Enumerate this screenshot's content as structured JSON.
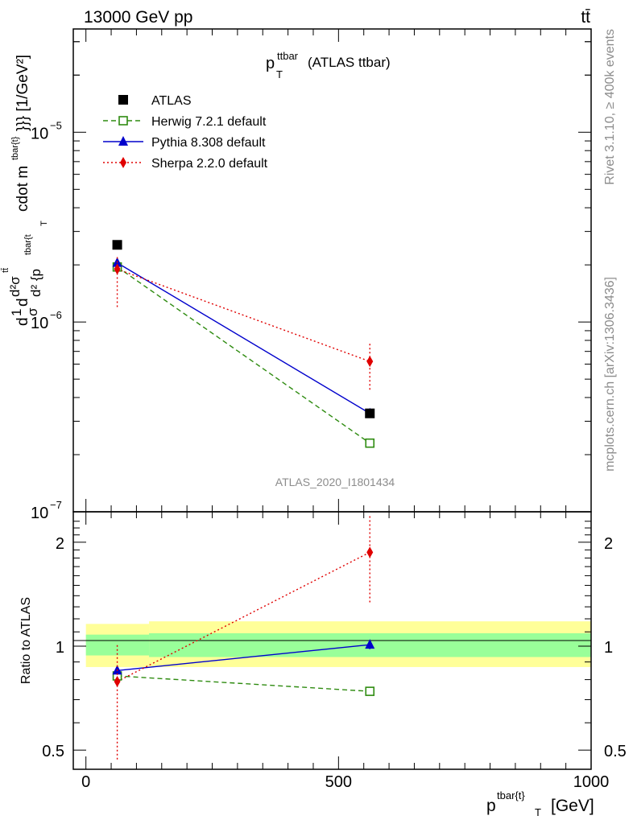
{
  "header": {
    "left": "13000 GeV pp",
    "right": "tt̄"
  },
  "side_labels": {
    "rivet": "Rivet 3.1.10, ≥ 400k events",
    "mcplots": "mcplots.cern.ch [arXiv:1306.3436]"
  },
  "chart_data": [
    {
      "type": "scatter",
      "panel": "main",
      "title_main": "p",
      "title_sub": "T",
      "title_sup": "ttbar",
      "title_rest": "(ATLAS ttbar)",
      "watermark": "ATLAS_2020_I1801434",
      "yscale": "log",
      "ylim": [
        1e-07,
        3.5e-05
      ],
      "xlim": [
        -25,
        1000
      ],
      "ylabel_parts": {
        "d1": "d",
        "one": "1",
        "sigma": "σ",
        "d2": "d",
        "d2sigma_top": "d²σ",
        "sigma_sup": "tt̄",
        "denominator": "d² {p",
        "denom_sup": "tbar{t",
        "denom_sub": "T",
        "rest": "cdot m",
        "rest_sup": "tbar{t}",
        "units": "}}} [1/GeV²]"
      },
      "yticks": [
        {
          "value": 1e-05,
          "label": "10",
          "exp": "−5"
        },
        {
          "value": 1e-06,
          "label": "10",
          "exp": "−6"
        },
        {
          "value": 1e-07,
          "label": "10",
          "exp": "−7"
        }
      ],
      "legend": [
        {
          "name": "ATLAS",
          "color": "#000000",
          "marker": "square",
          "line": "none"
        },
        {
          "name": "Herwig 7.2.1 default",
          "color": "#2e8b10",
          "marker": "open-square",
          "line": "dashed"
        },
        {
          "name": "Pythia 8.308 default",
          "color": "#0000cc",
          "marker": "triangle",
          "line": "solid"
        },
        {
          "name": "Sherpa 2.2.0 default",
          "color": "#e00000",
          "marker": "diamond",
          "line": "dotted"
        }
      ],
      "series": [
        {
          "name": "ATLAS",
          "x": [
            62,
            562
          ],
          "y": [
            2.55e-06,
            3.3e-07
          ],
          "yerr_low": [
            2.5e-06,
            3.2e-07
          ],
          "yerr_high": [
            2.6e-06,
            3.4e-07
          ]
        },
        {
          "name": "Herwig 7.2.1 default",
          "x": [
            62,
            562
          ],
          "y": [
            1.95e-06,
            2.3e-07
          ]
        },
        {
          "name": "Pythia 8.308 default",
          "x": [
            62,
            562
          ],
          "y": [
            2.05e-06,
            3.3e-07
          ]
        },
        {
          "name": "Sherpa 2.2.0 default",
          "x": [
            62,
            562
          ],
          "y": [
            1.9e-06,
            6.2e-07
          ],
          "yerr_low": [
            1.2e-06,
            4.4e-07
          ],
          "yerr_high": [
            2.2e-06,
            7.7e-07
          ]
        }
      ]
    },
    {
      "type": "scatter",
      "panel": "ratio",
      "yscale": "log",
      "ylim": [
        0.44,
        2.45
      ],
      "xlim": [
        -25,
        1000
      ],
      "ylabel": "Ratio to ATLAS",
      "xlabel": "p",
      "xlabel_sup": "tbar{t}",
      "xlabel_sub": "T",
      "xlabel_units": "[GeV]",
      "xticks": [
        {
          "value": 0,
          "label": "0"
        },
        {
          "value": 500,
          "label": "500"
        },
        {
          "value": 1000,
          "label": "1000"
        }
      ],
      "yticks": [
        {
          "value": 0.5,
          "label": "0.5"
        },
        {
          "value": 1,
          "label": "1"
        },
        {
          "value": 2,
          "label": "2"
        }
      ],
      "bands": [
        {
          "x0": 0,
          "x1": 125,
          "yellow": [
            0.87,
            1.16
          ],
          "green": [
            0.94,
            1.08
          ]
        },
        {
          "x0": 125,
          "x1": 1000,
          "yellow": [
            0.87,
            1.18
          ],
          "green": [
            0.93,
            1.09
          ]
        }
      ],
      "series": [
        {
          "name": "Herwig 7.2.1 default",
          "x": [
            62,
            562
          ],
          "y": [
            0.82,
            0.74
          ]
        },
        {
          "name": "Pythia 8.308 default",
          "x": [
            62,
            562
          ],
          "y": [
            0.85,
            1.01
          ],
          "yerr_low": [
            0.84,
            0.98
          ],
          "yerr_high": [
            0.86,
            1.04
          ]
        },
        {
          "name": "Sherpa 2.2.0 default",
          "x": [
            62,
            562
          ],
          "y": [
            0.79,
            1.87
          ],
          "yerr_low": [
            0.47,
            1.34
          ],
          "yerr_high": [
            1.02,
            2.38
          ]
        }
      ]
    }
  ]
}
